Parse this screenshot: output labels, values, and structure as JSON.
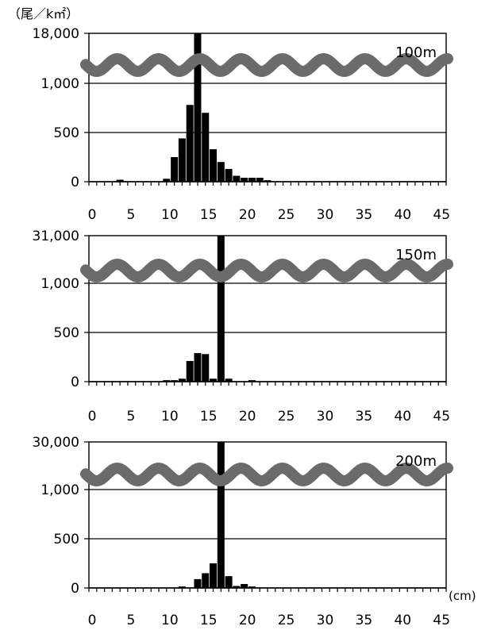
{
  "y_unit": "（尾／k㎡）",
  "x_unit": "(cm)",
  "chart_data": [
    {
      "type": "bar",
      "depth_label": "100m",
      "y_tick_labels": [
        "0",
        "500",
        "1,000",
        "18,000"
      ],
      "y_ticks": [
        0,
        500,
        1000,
        18000
      ],
      "broken_axis": {
        "break_between": [
          1000,
          18000
        ]
      },
      "x_tick_labels": [
        "0",
        "5",
        "10",
        "15",
        "20",
        "25",
        "30",
        "35",
        "40",
        "45"
      ],
      "x_ticks": [
        0,
        5,
        10,
        15,
        20,
        25,
        30,
        35,
        40,
        45
      ],
      "xlim": [
        0,
        46
      ],
      "grid": true,
      "x": [
        4,
        10,
        11,
        12,
        13,
        14,
        15,
        16,
        17,
        18,
        19,
        20,
        21,
        22,
        23
      ],
      "values": [
        20,
        30,
        250,
        440,
        780,
        18000,
        700,
        330,
        200,
        130,
        60,
        40,
        40,
        40,
        15
      ]
    },
    {
      "type": "bar",
      "depth_label": "150m",
      "y_tick_labels": [
        "0",
        "500",
        "1,000",
        "31,000"
      ],
      "y_ticks": [
        0,
        500,
        1000,
        31000
      ],
      "broken_axis": {
        "break_between": [
          1000,
          31000
        ]
      },
      "x_tick_labels": [
        "0",
        "5",
        "10",
        "15",
        "20",
        "25",
        "30",
        "35",
        "40",
        "45"
      ],
      "x_ticks": [
        0,
        5,
        10,
        15,
        20,
        25,
        30,
        35,
        40,
        45
      ],
      "xlim": [
        0,
        46
      ],
      "grid": true,
      "x": [
        10,
        11,
        12,
        13,
        14,
        15,
        16,
        17,
        18,
        21
      ],
      "values": [
        15,
        15,
        30,
        210,
        290,
        280,
        30,
        30000,
        30,
        15
      ]
    },
    {
      "type": "bar",
      "depth_label": "200m",
      "y_tick_labels": [
        "0",
        "500",
        "1,000",
        "30,000"
      ],
      "y_ticks": [
        0,
        500,
        1000,
        30000
      ],
      "broken_axis": {
        "break_between": [
          1000,
          30000
        ]
      },
      "x_tick_labels": [
        "0",
        "5",
        "10",
        "15",
        "20",
        "25",
        "30",
        "35",
        "40",
        "45"
      ],
      "x_ticks": [
        0,
        5,
        10,
        15,
        20,
        25,
        30,
        35,
        40,
        45
      ],
      "xlim": [
        0,
        46
      ],
      "grid": true,
      "x": [
        12,
        14,
        15,
        16,
        17,
        18,
        19,
        20,
        21
      ],
      "values": [
        15,
        90,
        150,
        250,
        29000,
        120,
        20,
        40,
        15
      ]
    }
  ]
}
